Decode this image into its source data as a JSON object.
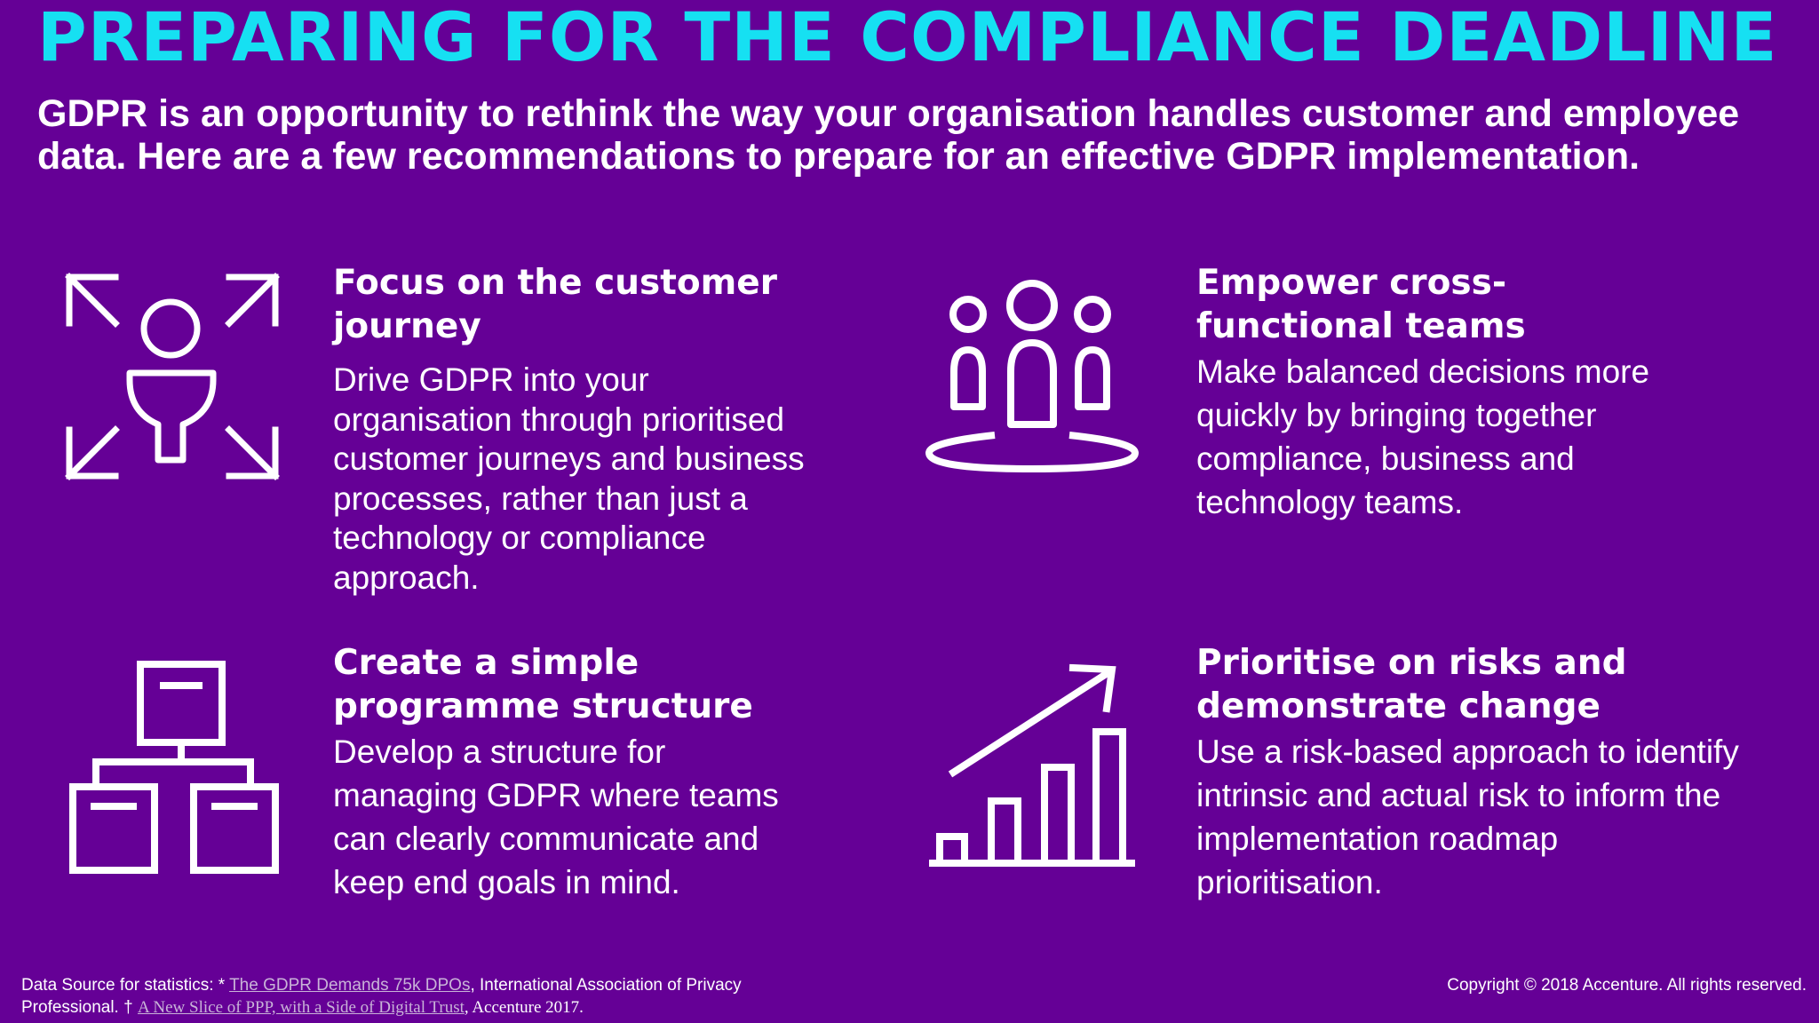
{
  "slide": {
    "title": "PREPARING FOR THE COMPLIANCE DEADLINE",
    "subtitle_line1": "GDPR is an opportunity to rethink the way your organisation handles customer and employee",
    "subtitle_line2": "data. Here are a few recommendations to prepare for an effective GDPR implementation."
  },
  "cards": [
    {
      "icon": "customer-journey-icon",
      "heading": "Focus on the customer\njourney",
      "body": "Drive GDPR into your\norganisation through prioritised\ncustomer journeys and business\nprocesses, rather than just a\ntechnology or compliance\napproach."
    },
    {
      "icon": "team-people-icon",
      "heading": "Empower cross-\nfunctional teams",
      "body": "Make balanced decisions more\nquickly by bringing together\ncompliance, business and\ntechnology teams."
    },
    {
      "icon": "org-structure-icon",
      "heading": "Create a simple\nprogramme structure",
      "body": "Develop a structure for\nmanaging GDPR where teams\ncan clearly communicate and\nkeep end goals in mind."
    },
    {
      "icon": "growth-chart-icon",
      "heading": "Prioritise on risks and\ndemonstrate change",
      "body": "Use a risk-based approach to identify\nintrinsic and actual risk to inform the\nimplementation roadmap\nprioritisation."
    }
  ],
  "footer": {
    "source_prefix": "Data Source for statistics: * ",
    "source_link1": "The GDPR Demands 75k DPOs",
    "source_mid": ", International Association of Privacy",
    "source_line2_prefix": "Professional.  † ",
    "source_link2": "A New Slice of PPP, with a Side of Digital Trust",
    "source_suffix": ", Accenture 2017.",
    "copyright": "Copyright © 2018 Accenture. All rights reserved."
  },
  "colors": {
    "background": "#650096",
    "title": "#16e0f2",
    "text": "#ffffff",
    "link": "#c9b3d8"
  }
}
